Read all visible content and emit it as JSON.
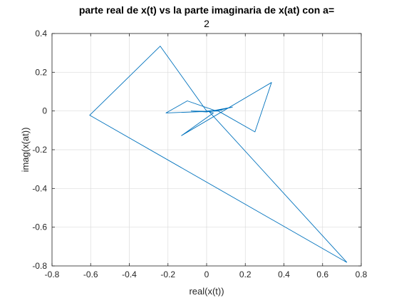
{
  "chart_data": {
    "type": "line",
    "title_line1": "parte real de x(t) vs la parte imaginaria de x(at) con a=",
    "title_line2": "2",
    "xlabel": "real(x(t))",
    "ylabel": "imag(x(at))",
    "xlim": [
      -0.8,
      0.8
    ],
    "ylim": [
      -0.8,
      0.4
    ],
    "xticks": [
      -0.8,
      -0.6,
      -0.4,
      -0.2,
      0,
      0.2,
      0.4,
      0.6,
      0.8
    ],
    "yticks": [
      -0.8,
      -0.6,
      -0.4,
      -0.2,
      0,
      0.2,
      0.4
    ],
    "xtick_labels": [
      "-0.8",
      "-0.6",
      "-0.4",
      "-0.2",
      "0",
      "0.2",
      "0.4",
      "0.6",
      "0.8"
    ],
    "ytick_labels": [
      "-0.8",
      "-0.6",
      "-0.4",
      "-0.2",
      "0",
      "0.2",
      "0.4"
    ],
    "grid": true,
    "line_color": "#0072bd",
    "series": [
      {
        "x": [
          0.726,
          -0.605,
          -0.24,
          0.0,
          0.035,
          -0.13,
          0.336,
          0.25,
          0.06,
          -0.21,
          -0.1,
          0.05,
          0.134,
          0.0,
          -0.08,
          0.02,
          0.08,
          0.0,
          0.01,
          0.726
        ],
        "y": [
          -0.782,
          -0.022,
          0.335,
          0.0,
          -0.01,
          -0.127,
          0.147,
          -0.108,
          0.0,
          -0.01,
          0.052,
          0.0,
          0.02,
          -0.005,
          0.0,
          -0.002,
          0.005,
          0.0,
          0.0,
          -0.782
        ]
      }
    ]
  }
}
